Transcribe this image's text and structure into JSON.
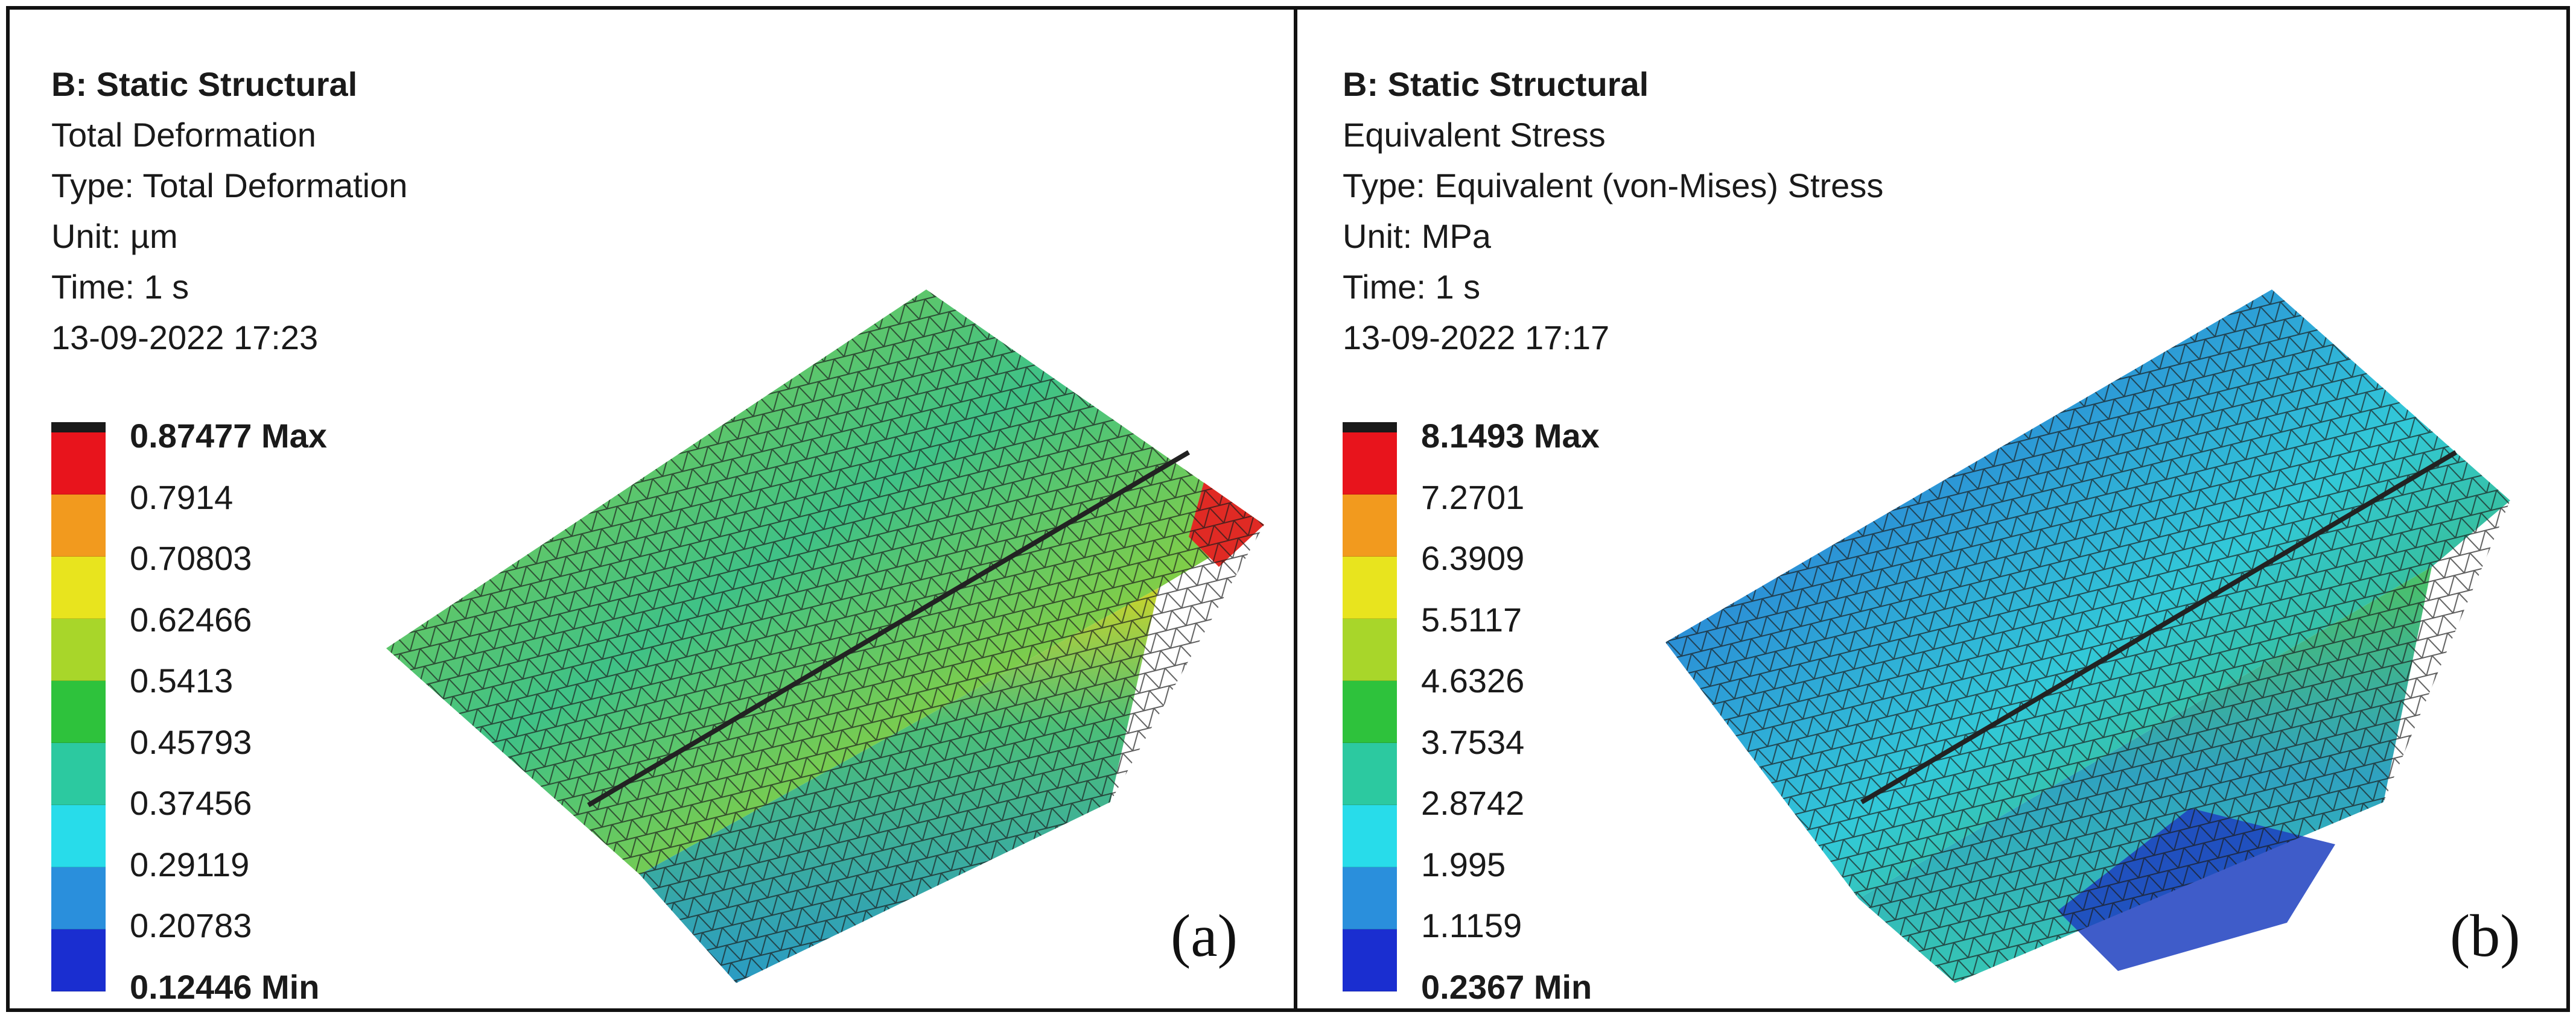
{
  "panel_a": {
    "analysis": "B: Static Structural",
    "result": "Total Deformation",
    "type": "Type: Total Deformation",
    "unit": "Unit: µm",
    "time": "Time: 1 s",
    "timestamp": "13-09-2022 17:23",
    "legend_max": "0.87477 Max",
    "legend_min": "0.12446 Min",
    "legend_values": [
      "0.7914",
      "0.70803",
      "0.62466",
      "0.5413",
      "0.45793",
      "0.37456",
      "0.29119",
      "0.20783"
    ],
    "label": "(a)"
  },
  "panel_b": {
    "analysis": "B: Static Structural",
    "result": "Equivalent Stress",
    "type": "Type: Equivalent (von-Mises) Stress",
    "unit": "Unit: MPa",
    "time": "Time: 1 s",
    "timestamp": "13-09-2022 17:17",
    "legend_max": "8.1493 Max",
    "legend_min": "0.2367 Min",
    "legend_values": [
      "7.2701",
      "6.3909",
      "5.5117",
      "4.6326",
      "3.7534",
      "2.8742",
      "1.995",
      "1.1159"
    ],
    "label": "(b)"
  },
  "legend_colors": [
    "#e8141c",
    "#f29a1e",
    "#e8e41e",
    "#a8d62a",
    "#2ec23c",
    "#2cc9a0",
    "#28dcea",
    "#2a8fdc",
    "#1a2ed0"
  ]
}
